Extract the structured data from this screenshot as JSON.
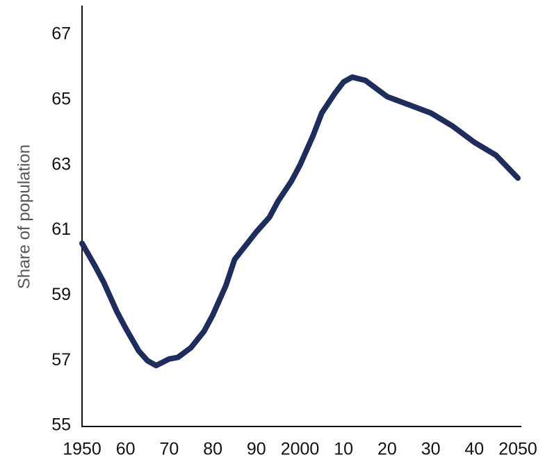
{
  "chart_data": {
    "type": "line",
    "y_label": "Share of population",
    "x": [
      1950,
      1953,
      1955,
      1958,
      1960,
      1963,
      1965,
      1967,
      1970,
      1972,
      1975,
      1978,
      1980,
      1983,
      1985,
      1990,
      1993,
      1995,
      1998,
      2000,
      2003,
      2005,
      2008,
      2010,
      2012,
      2015,
      2018,
      2020,
      2025,
      2030,
      2035,
      2040,
      2045,
      2050
    ],
    "series": [
      {
        "color": "#1f2d5c",
        "values": [
          60.6,
          59.9,
          59.4,
          58.5,
          58.0,
          57.3,
          57.0,
          56.85,
          57.05,
          57.1,
          57.4,
          57.9,
          58.4,
          59.3,
          60.1,
          60.95,
          61.4,
          61.9,
          62.5,
          63.0,
          63.9,
          64.6,
          65.2,
          65.55,
          65.7,
          65.6,
          65.3,
          65.1,
          64.85,
          64.6,
          64.2,
          63.7,
          63.3,
          62.6
        ]
      }
    ],
    "xlim": [
      1950,
      2050
    ],
    "xticks": [
      1950,
      {
        "value": 1960,
        "label": "60"
      },
      {
        "value": 1970,
        "label": "70"
      },
      {
        "value": 1980,
        "label": "80"
      },
      {
        "value": 1990,
        "label": "90"
      },
      2000,
      {
        "value": 2010,
        "label": "10"
      },
      {
        "value": 2020,
        "label": "20"
      },
      {
        "value": 2030,
        "label": "30"
      },
      {
        "value": 2040,
        "label": "40"
      },
      2050
    ],
    "ylim": [
      55,
      67
    ],
    "yticks": [
      55,
      57,
      59,
      61,
      63,
      65,
      67
    ],
    "grid": false
  }
}
